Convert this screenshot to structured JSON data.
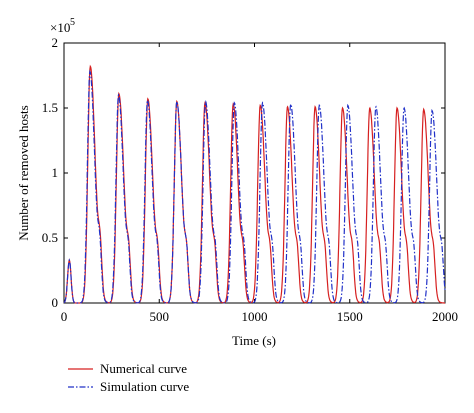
{
  "chart_data": {
    "type": "line",
    "xlabel": "Time (s)",
    "ylabel": "Number of removed hosts",
    "y_multiplier_label": "×10",
    "y_multiplier_exponent": "5",
    "xlim": [
      0,
      2000
    ],
    "ylim": [
      0,
      2
    ],
    "x_ticks": [
      0,
      500,
      1000,
      1500,
      2000
    ],
    "x_tick_labels": [
      "0",
      "500",
      "1000",
      "1500",
      "2000"
    ],
    "y_ticks": [
      0,
      0.5,
      1,
      1.5,
      2
    ],
    "y_tick_labels": [
      "0",
      "0.5",
      "1",
      "1.5",
      "2"
    ],
    "grid": false,
    "legend_position": "below-left",
    "series": [
      {
        "name": "Numerical curve",
        "color": "#d62020",
        "style": "solid",
        "peaks": [
          {
            "t": 28,
            "height": 0.33
          },
          {
            "t": 138,
            "height": 1.82
          },
          {
            "t": 288,
            "height": 1.61
          },
          {
            "t": 440,
            "height": 1.57
          },
          {
            "t": 592,
            "height": 1.55
          },
          {
            "t": 740,
            "height": 1.54
          },
          {
            "t": 888,
            "height": 1.53
          },
          {
            "t": 1030,
            "height": 1.52
          },
          {
            "t": 1173,
            "height": 1.51
          },
          {
            "t": 1318,
            "height": 1.51
          },
          {
            "t": 1462,
            "height": 1.5
          },
          {
            "t": 1605,
            "height": 1.5
          },
          {
            "t": 1748,
            "height": 1.5
          },
          {
            "t": 1888,
            "height": 1.49
          }
        ]
      },
      {
        "name": "Simulation curve",
        "color": "#2030c8",
        "style": "dashdot",
        "peaks": [
          {
            "t": 28,
            "height": 0.33
          },
          {
            "t": 136,
            "height": 1.78
          },
          {
            "t": 286,
            "height": 1.6
          },
          {
            "t": 438,
            "height": 1.56
          },
          {
            "t": 592,
            "height": 1.55
          },
          {
            "t": 743,
            "height": 1.55
          },
          {
            "t": 894,
            "height": 1.54
          },
          {
            "t": 1042,
            "height": 1.54
          },
          {
            "t": 1190,
            "height": 1.53
          },
          {
            "t": 1340,
            "height": 1.52
          },
          {
            "t": 1490,
            "height": 1.52
          },
          {
            "t": 1637,
            "height": 1.51
          },
          {
            "t": 1785,
            "height": 1.5
          },
          {
            "t": 1932,
            "height": 1.48
          }
        ]
      }
    ]
  }
}
